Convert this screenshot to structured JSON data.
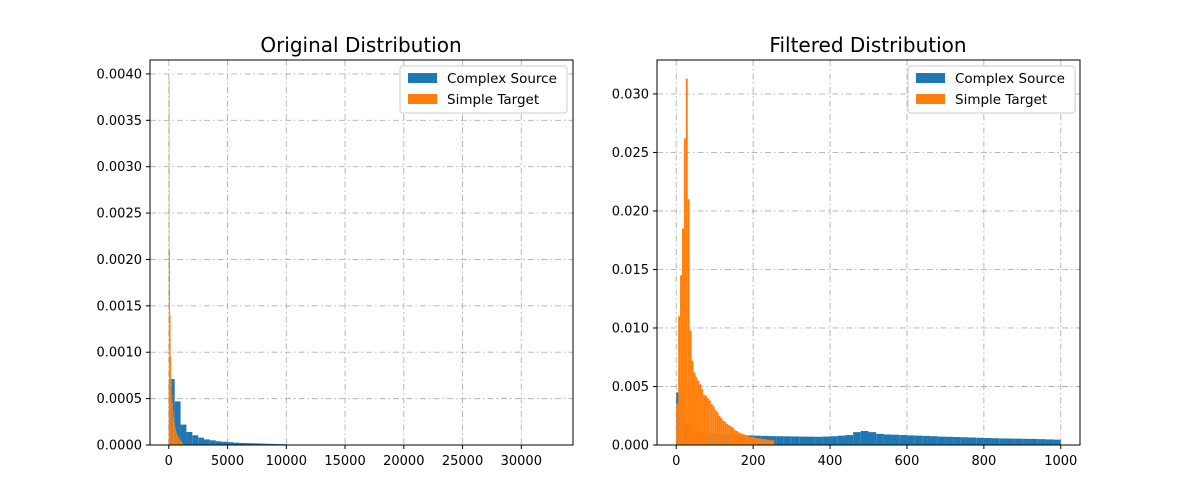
{
  "chart_data": [
    {
      "type": "bar",
      "title": "Original Distribution",
      "xlabel": "",
      "ylabel": "",
      "xlim": [
        -1600,
        34400
      ],
      "ylim": [
        0,
        0.00415
      ],
      "xticks": [
        0,
        5000,
        10000,
        15000,
        20000,
        25000,
        30000
      ],
      "yticks": [
        0.0,
        0.0005,
        0.001,
        0.0015,
        0.002,
        0.0025,
        0.003,
        0.0035,
        0.004
      ],
      "xtick_labels": [
        "0",
        "5000",
        "10000",
        "15000",
        "20000",
        "25000",
        "30000"
      ],
      "ytick_labels": [
        "0.0000",
        "0.0005",
        "0.0010",
        "0.0015",
        "0.0020",
        "0.0025",
        "0.0030",
        "0.0035",
        "0.0040"
      ],
      "grid": true,
      "legend_position": "top-right",
      "series": [
        {
          "name": "Complex Source",
          "color": "#1f77b4",
          "bin_edges": [
            0,
            500,
            1000,
            1500,
            2000,
            2500,
            3000,
            3500,
            4000,
            4500,
            5000,
            5500,
            6000,
            6500,
            7000,
            7500,
            8000,
            8500,
            9000,
            9500,
            10000
          ],
          "values": [
            0.00071,
            0.00047,
            0.00022,
            0.00014,
            0.000105,
            8e-05,
            6e-05,
            5e-05,
            4e-05,
            3.5e-05,
            3e-05,
            2.5e-05,
            2.2e-05,
            2e-05,
            1.8e-05,
            1.6e-05,
            1.4e-05,
            1.2e-05,
            1e-05,
            9e-06
          ]
        },
        {
          "name": "Simple Target",
          "color": "#ff7f0e",
          "bin_edges": [
            0,
            50,
            100,
            150,
            200,
            250,
            300,
            350,
            400,
            450,
            500,
            550,
            600,
            650,
            700,
            750,
            800,
            850,
            900,
            950,
            1000,
            1050,
            1100,
            1150,
            1200,
            1250
          ],
          "values": [
            0.00395,
            0.0021,
            0.0014,
            0.00095,
            0.0007,
            0.00055,
            0.00045,
            0.00037,
            0.0003,
            0.00025,
            0.00021,
            0.00018,
            0.00015,
            0.00013,
            0.00011,
            0.0001,
            9e-05,
            8e-05,
            7e-05,
            6e-05,
            5e-05,
            4e-05,
            3e-05,
            2e-05,
            1e-05
          ]
        }
      ]
    },
    {
      "type": "bar",
      "title": "Filtered Distribution",
      "xlabel": "",
      "ylabel": "",
      "xlim": [
        -50,
        1050
      ],
      "ylim": [
        0,
        0.0329
      ],
      "xticks": [
        0,
        200,
        400,
        600,
        800,
        1000
      ],
      "yticks": [
        0.0,
        0.005,
        0.01,
        0.015,
        0.02,
        0.025,
        0.03
      ],
      "xtick_labels": [
        "0",
        "200",
        "400",
        "600",
        "800",
        "1000"
      ],
      "ytick_labels": [
        "0.000",
        "0.005",
        "0.010",
        "0.015",
        "0.020",
        "0.025",
        "0.030"
      ],
      "grid": true,
      "legend_position": "top-right",
      "series": [
        {
          "name": "Complex Source",
          "color": "#1f77b4",
          "bin_start": 0,
          "bin_width": 20,
          "values": [
            0.0045,
            0.0018,
            0.0012,
            0.0011,
            0.001,
            0.00095,
            0.0009,
            0.00088,
            0.00085,
            0.00082,
            0.0008,
            0.00078,
            0.00076,
            0.00075,
            0.00074,
            0.00073,
            0.00072,
            0.00071,
            0.0007,
            0.00072,
            0.00075,
            0.0008,
            0.00085,
            0.0011,
            0.0012,
            0.0011,
            0.00095,
            0.0009,
            0.00088,
            0.00085,
            0.00082,
            0.0008,
            0.00078,
            0.00075,
            0.00072,
            0.0007,
            0.00068,
            0.00066,
            0.00064,
            0.00062,
            0.0006,
            0.00058,
            0.00056,
            0.00055,
            0.00054,
            0.00053,
            0.00052,
            0.0005,
            0.00048,
            0.00046
          ]
        },
        {
          "name": "Simple Target",
          "color": "#ff7f0e",
          "bin_start": 0,
          "bin_width": 5,
          "values": [
            0.0035,
            0.011,
            0.0145,
            0.0185,
            0.0262,
            0.0313,
            0.021,
            0.0098,
            0.0072,
            0.0062,
            0.0058,
            0.0055,
            0.0052,
            0.0048,
            0.0043,
            0.0042,
            0.004,
            0.0038,
            0.0035,
            0.0033,
            0.003,
            0.0028,
            0.0025,
            0.0023,
            0.0021,
            0.002,
            0.0018,
            0.0017,
            0.0016,
            0.0015,
            0.0013,
            0.0012,
            0.0011,
            0.001,
            0.00095,
            0.0009,
            0.0008,
            0.00075,
            0.0007,
            0.00068,
            0.00065,
            0.0006,
            0.00058,
            0.00055,
            0.00052,
            0.0005,
            0.00048,
            0.00046,
            0.00044,
            0.00042,
            0.0004
          ]
        }
      ]
    }
  ]
}
